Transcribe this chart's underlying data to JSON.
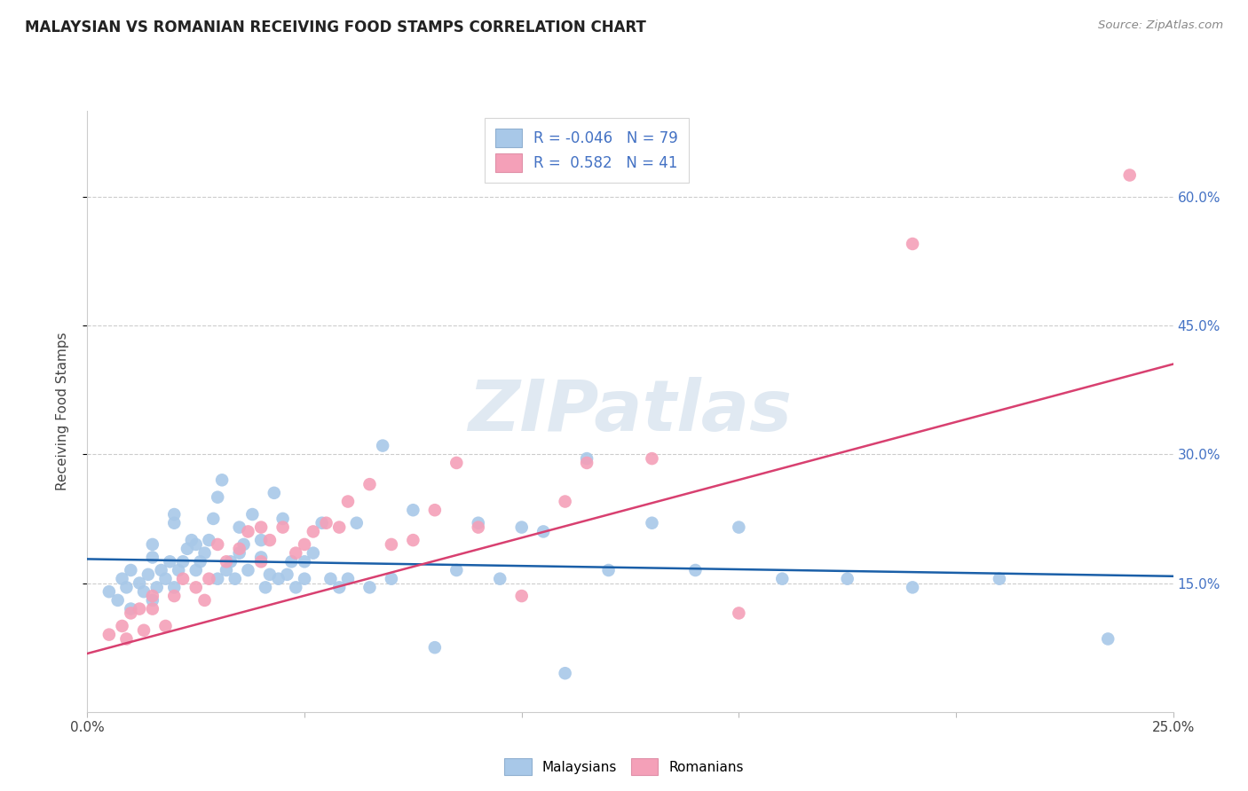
{
  "title": "MALAYSIAN VS ROMANIAN RECEIVING FOOD STAMPS CORRELATION CHART",
  "source": "Source: ZipAtlas.com",
  "ylabel": "Receiving Food Stamps",
  "right_yticks": [
    "60.0%",
    "45.0%",
    "30.0%",
    "15.0%"
  ],
  "right_ytick_vals": [
    0.6,
    0.45,
    0.3,
    0.15
  ],
  "x_min": 0.0,
  "x_max": 0.25,
  "y_min": 0.0,
  "y_max": 0.7,
  "malaysian_color": "#a8c8e8",
  "romanian_color": "#f4a0b8",
  "malaysian_line_color": "#1a5fa8",
  "romanian_line_color": "#d84070",
  "legend_R_malaysian": "-0.046",
  "legend_N_malaysian": "79",
  "legend_R_romanian": "0.582",
  "legend_N_romanian": "41",
  "watermark": "ZIPatlas",
  "malaysian_x": [
    0.005,
    0.007,
    0.008,
    0.009,
    0.01,
    0.01,
    0.012,
    0.013,
    0.014,
    0.015,
    0.015,
    0.015,
    0.016,
    0.017,
    0.018,
    0.019,
    0.02,
    0.02,
    0.02,
    0.021,
    0.022,
    0.023,
    0.024,
    0.025,
    0.025,
    0.026,
    0.027,
    0.028,
    0.029,
    0.03,
    0.03,
    0.031,
    0.032,
    0.033,
    0.034,
    0.035,
    0.035,
    0.036,
    0.037,
    0.038,
    0.04,
    0.04,
    0.041,
    0.042,
    0.043,
    0.044,
    0.045,
    0.046,
    0.047,
    0.048,
    0.05,
    0.05,
    0.052,
    0.054,
    0.056,
    0.058,
    0.06,
    0.062,
    0.065,
    0.068,
    0.07,
    0.075,
    0.08,
    0.085,
    0.09,
    0.095,
    0.1,
    0.105,
    0.11,
    0.115,
    0.12,
    0.13,
    0.14,
    0.15,
    0.16,
    0.175,
    0.19,
    0.21,
    0.235
  ],
  "malaysian_y": [
    0.14,
    0.13,
    0.155,
    0.145,
    0.12,
    0.165,
    0.15,
    0.14,
    0.16,
    0.13,
    0.18,
    0.195,
    0.145,
    0.165,
    0.155,
    0.175,
    0.145,
    0.22,
    0.23,
    0.165,
    0.175,
    0.19,
    0.2,
    0.165,
    0.195,
    0.175,
    0.185,
    0.2,
    0.225,
    0.155,
    0.25,
    0.27,
    0.165,
    0.175,
    0.155,
    0.185,
    0.215,
    0.195,
    0.165,
    0.23,
    0.18,
    0.2,
    0.145,
    0.16,
    0.255,
    0.155,
    0.225,
    0.16,
    0.175,
    0.145,
    0.155,
    0.175,
    0.185,
    0.22,
    0.155,
    0.145,
    0.155,
    0.22,
    0.145,
    0.31,
    0.155,
    0.235,
    0.075,
    0.165,
    0.22,
    0.155,
    0.215,
    0.21,
    0.045,
    0.295,
    0.165,
    0.22,
    0.165,
    0.215,
    0.155,
    0.155,
    0.145,
    0.155,
    0.085
  ],
  "romanian_x": [
    0.005,
    0.008,
    0.009,
    0.01,
    0.012,
    0.013,
    0.015,
    0.015,
    0.018,
    0.02,
    0.022,
    0.025,
    0.027,
    0.028,
    0.03,
    0.032,
    0.035,
    0.037,
    0.04,
    0.04,
    0.042,
    0.045,
    0.048,
    0.05,
    0.052,
    0.055,
    0.058,
    0.06,
    0.065,
    0.07,
    0.075,
    0.08,
    0.085,
    0.09,
    0.1,
    0.11,
    0.115,
    0.13,
    0.15,
    0.19,
    0.24
  ],
  "romanian_y": [
    0.09,
    0.1,
    0.085,
    0.115,
    0.12,
    0.095,
    0.12,
    0.135,
    0.1,
    0.135,
    0.155,
    0.145,
    0.13,
    0.155,
    0.195,
    0.175,
    0.19,
    0.21,
    0.175,
    0.215,
    0.2,
    0.215,
    0.185,
    0.195,
    0.21,
    0.22,
    0.215,
    0.245,
    0.265,
    0.195,
    0.2,
    0.235,
    0.29,
    0.215,
    0.135,
    0.245,
    0.29,
    0.295,
    0.115,
    0.545,
    0.625
  ],
  "malaysian_trend_x": [
    0.0,
    0.25
  ],
  "malaysian_trend_y": [
    0.178,
    0.158
  ],
  "romanian_trend_x": [
    0.0,
    0.25
  ],
  "romanian_trend_y": [
    0.068,
    0.405
  ]
}
